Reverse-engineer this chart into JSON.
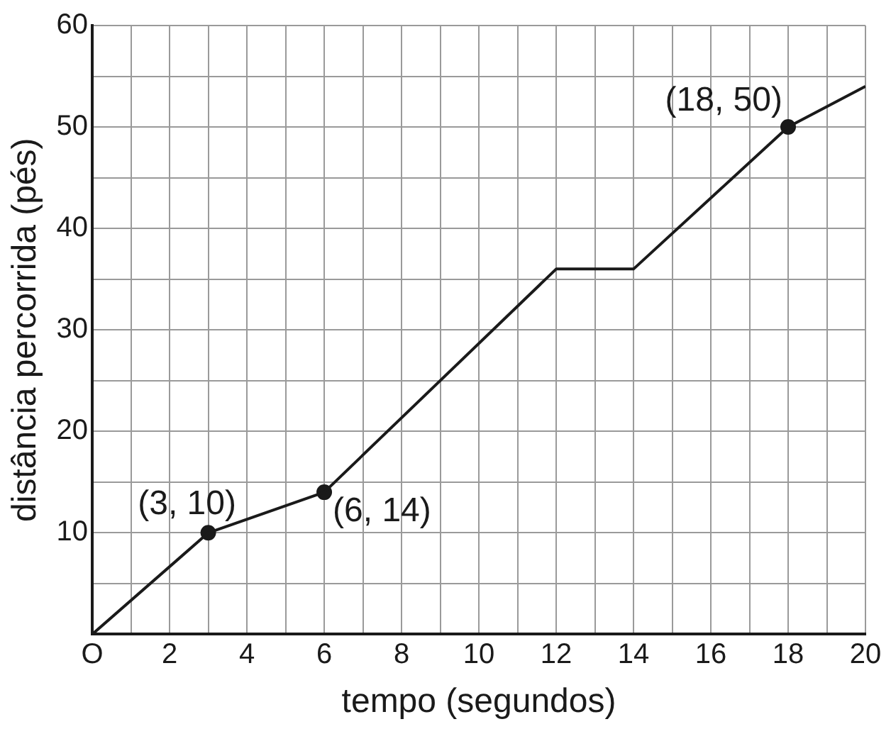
{
  "chart_data": {
    "type": "line",
    "xlabel": "tempo (segundos)",
    "ylabel": "distância percorrida (pés)",
    "xlim": [
      0,
      20
    ],
    "ylim": [
      0,
      60
    ],
    "xticks": [
      {
        "value": 0,
        "label": "O"
      },
      {
        "value": 1,
        "label": null
      },
      2,
      {
        "value": 3,
        "label": null
      },
      4,
      {
        "value": 5,
        "label": null
      },
      6,
      {
        "value": 7,
        "label": null
      },
      8,
      {
        "value": 9,
        "label": null
      },
      10,
      {
        "value": 11,
        "label": null
      },
      12,
      {
        "value": 13,
        "label": null
      },
      14,
      {
        "value": 15,
        "label": null
      },
      16,
      {
        "value": 17,
        "label": null
      },
      18,
      {
        "value": 19,
        "label": null
      },
      20
    ],
    "yticks": [
      {
        "value": 0,
        "label": null
      },
      {
        "value": 5,
        "label": null
      },
      10,
      {
        "value": 15,
        "label": null
      },
      20,
      {
        "value": 25,
        "label": null
      },
      30,
      {
        "value": 35,
        "label": null
      },
      40,
      {
        "value": 45,
        "label": null
      },
      50,
      {
        "value": 55,
        "label": null
      },
      60
    ],
    "grid": true,
    "legend": false,
    "series": [
      {
        "type": "line",
        "color": "#1a1a1a",
        "x": [
          0,
          3,
          6,
          12,
          14,
          18,
          20
        ],
        "values": [
          0,
          10,
          14,
          36,
          36,
          50,
          54
        ],
        "marker": "none",
        "line_style": "solid"
      },
      {
        "type": "scatter",
        "color": "#1a1a1a",
        "x": [
          3,
          6,
          18
        ],
        "values": [
          10,
          14,
          50
        ],
        "marker": "circle"
      }
    ],
    "annotations": [
      {
        "text": "(3, 10)",
        "x": 3,
        "y": 10
      },
      {
        "text": "(6, 14)",
        "x": 6,
        "y": 14
      },
      {
        "text": "(18, 50)",
        "x": 18,
        "y": 50
      }
    ]
  }
}
